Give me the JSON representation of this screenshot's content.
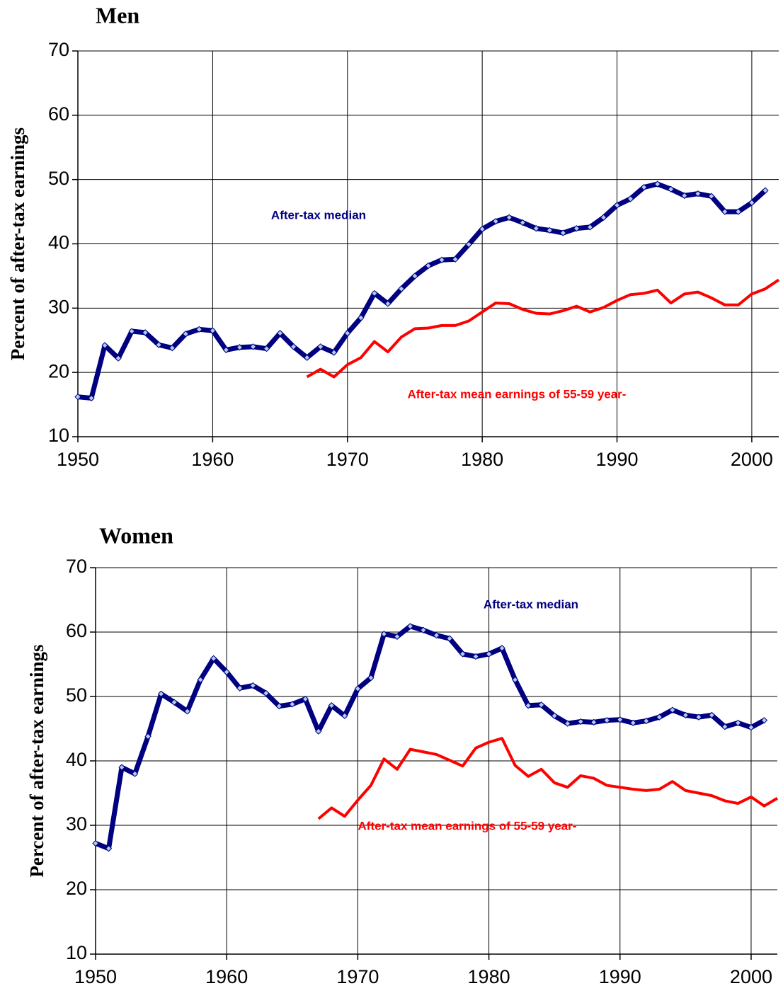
{
  "chart_data": [
    {
      "type": "line",
      "title": "Men",
      "y_label": "Percent of after-tax earnings",
      "xlim": [
        1950,
        2002
      ],
      "xticks": [
        1950,
        1960,
        1970,
        1980,
        1990,
        2000
      ],
      "ylim": [
        10,
        70
      ],
      "yticks": [
        10,
        20,
        30,
        40,
        50,
        60,
        70
      ],
      "grid": true,
      "series": [
        {
          "name": "After-tax median",
          "color": "#000080",
          "marker_color": "#b0cdf0",
          "x": [
            1950,
            1951,
            1952,
            1953,
            1954,
            1955,
            1956,
            1957,
            1958,
            1959,
            1960,
            1961,
            1962,
            1963,
            1964,
            1965,
            1966,
            1967,
            1968,
            1969,
            1970,
            1971,
            1972,
            1973,
            1974,
            1975,
            1976,
            1977,
            1978,
            1979,
            1980,
            1981,
            1982,
            1983,
            1984,
            1985,
            1986,
            1987,
            1988,
            1989,
            1990,
            1991,
            1992,
            1993,
            1994,
            1995,
            1996,
            1997,
            1998,
            1999,
            2000,
            2001
          ],
          "values": [
            16.2,
            16.0,
            24.2,
            22.2,
            26.4,
            26.2,
            24.3,
            23.8,
            26.0,
            26.7,
            26.5,
            23.5,
            23.9,
            24.0,
            23.7,
            26.1,
            24.0,
            22.3,
            24.0,
            23.1,
            26.1,
            28.5,
            32.3,
            30.7,
            33.0,
            35.0,
            36.6,
            37.5,
            37.6,
            39.9,
            42.3,
            43.5,
            44.1,
            43.3,
            42.4,
            42.1,
            41.7,
            42.4,
            42.6,
            44.1,
            46.0,
            47.0,
            48.8,
            49.3,
            48.5,
            47.5,
            47.8,
            47.4,
            45.0,
            45.0,
            46.4,
            48.3
          ]
        },
        {
          "name": "After-tax mean earnings of 55-59 year-",
          "color": "#ff0000",
          "x": [
            1967,
            1968,
            1969,
            1970,
            1971,
            1972,
            1973,
            1974,
            1975,
            1976,
            1977,
            1978,
            1979,
            1980,
            1981,
            1982,
            1983,
            1984,
            1985,
            1986,
            1987,
            1988,
            1989,
            1990,
            1991,
            1992,
            1993,
            1994,
            1995,
            1996,
            1997,
            1998,
            1999,
            2000,
            2001,
            2002
          ],
          "values": [
            19.3,
            20.5,
            19.3,
            21.2,
            22.3,
            24.8,
            23.2,
            25.5,
            26.8,
            26.9,
            27.3,
            27.3,
            28.0,
            29.4,
            30.8,
            30.7,
            29.8,
            29.2,
            29.1,
            29.6,
            30.3,
            29.4,
            30.1,
            31.2,
            32.1,
            32.3,
            32.8,
            30.8,
            32.2,
            32.5,
            31.6,
            30.5,
            30.5,
            32.2,
            33.0,
            34.4
          ]
        }
      ]
    },
    {
      "type": "line",
      "title": "Women",
      "y_label": "Percent of after-tax earnings",
      "xlim": [
        1950,
        2002
      ],
      "xticks": [
        1950,
        1960,
        1970,
        1980,
        1990,
        2000
      ],
      "ylim": [
        10,
        70
      ],
      "yticks": [
        10,
        20,
        30,
        40,
        50,
        60,
        70
      ],
      "grid": true,
      "series": [
        {
          "name": "After-tax median",
          "color": "#000080",
          "marker_color": "#b0cdf0",
          "x": [
            1950,
            1951,
            1952,
            1953,
            1954,
            1955,
            1956,
            1957,
            1958,
            1959,
            1960,
            1961,
            1962,
            1963,
            1964,
            1965,
            1966,
            1967,
            1968,
            1969,
            1970,
            1971,
            1972,
            1973,
            1974,
            1975,
            1976,
            1977,
            1978,
            1979,
            1980,
            1981,
            1982,
            1983,
            1984,
            1985,
            1986,
            1987,
            1988,
            1989,
            1990,
            1991,
            1992,
            1993,
            1994,
            1995,
            1996,
            1997,
            1998,
            1999,
            2000,
            2001
          ],
          "values": [
            27.2,
            26.4,
            39.0,
            38.0,
            43.8,
            50.4,
            49.1,
            47.7,
            52.6,
            55.9,
            53.8,
            51.3,
            51.7,
            50.5,
            48.5,
            48.8,
            49.6,
            44.6,
            48.6,
            47.0,
            51.2,
            52.9,
            59.7,
            59.3,
            60.9,
            60.3,
            59.5,
            59.0,
            56.6,
            56.2,
            56.6,
            57.5,
            52.6,
            48.6,
            48.7,
            47.0,
            45.8,
            46.1,
            46.0,
            46.3,
            46.4,
            45.9,
            46.2,
            46.8,
            47.9,
            47.1,
            46.8,
            47.1,
            45.3,
            45.9,
            45.2,
            46.3
          ]
        },
        {
          "name": "After-tax mean earnings of 55-59 year-",
          "color": "#ff0000",
          "x": [
            1967,
            1968,
            1969,
            1970,
            1971,
            1972,
            1973,
            1974,
            1975,
            1976,
            1977,
            1978,
            1979,
            1980,
            1981,
            1982,
            1983,
            1984,
            1985,
            1986,
            1987,
            1988,
            1989,
            1990,
            1991,
            1992,
            1993,
            1994,
            1995,
            1996,
            1997,
            1998,
            1999,
            2000,
            2001,
            2002
          ],
          "values": [
            31.0,
            32.7,
            31.4,
            33.9,
            36.2,
            40.3,
            38.7,
            41.8,
            41.4,
            41.0,
            40.1,
            39.2,
            42.0,
            42.9,
            43.5,
            39.3,
            37.6,
            38.7,
            36.6,
            35.9,
            37.7,
            37.3,
            36.2,
            35.9,
            35.6,
            35.4,
            35.6,
            36.8,
            35.4,
            35.0,
            34.6,
            33.8,
            33.4,
            34.4,
            33.0,
            34.2
          ]
        }
      ]
    }
  ]
}
